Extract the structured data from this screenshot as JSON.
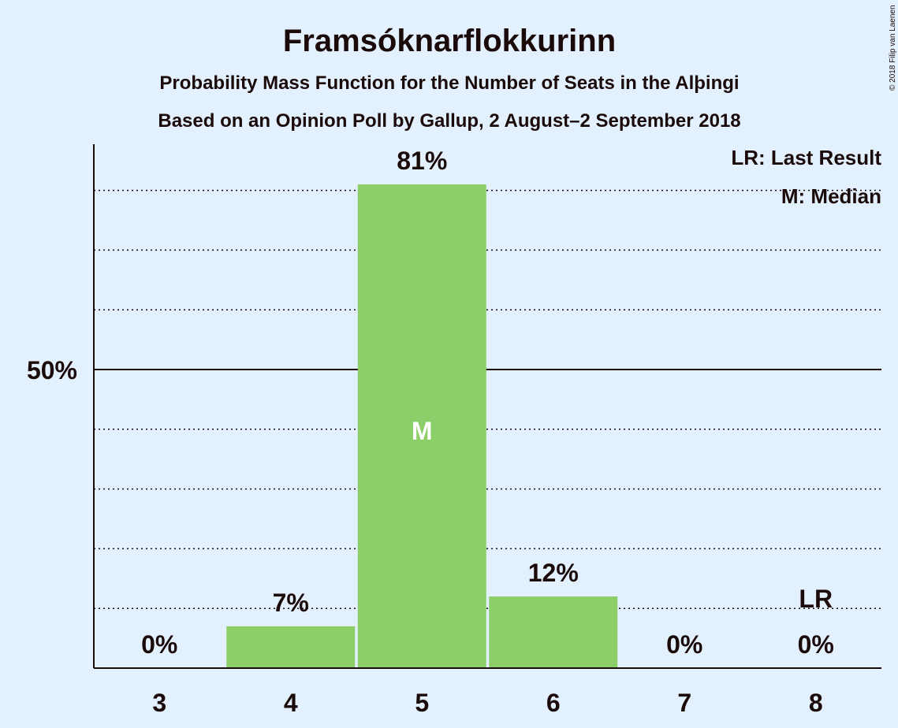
{
  "chart_data": {
    "type": "bar",
    "title": "Framsóknarflokkurinn",
    "subtitle_1": "Probability Mass Function for the Number of Seats in the Alþingi",
    "subtitle_2": "Based on an Opinion Poll by Gallup, 2 August–2 September 2018",
    "categories": [
      "3",
      "4",
      "5",
      "6",
      "7",
      "8"
    ],
    "values": [
      0,
      7,
      81,
      12,
      0,
      0
    ],
    "value_labels": [
      "0%",
      "7%",
      "81%",
      "12%",
      "0%",
      "0%"
    ],
    "ylim": [
      0,
      88
    ],
    "yticks": [
      50
    ],
    "ytick_labels": [
      "50%"
    ],
    "median_category": "5",
    "median_marker": "M",
    "last_result_category": "8",
    "last_result_marker": "LR",
    "legend": [
      "LR: Last Result",
      "M: Median"
    ],
    "legend_position": "top-right",
    "grid": "dotted",
    "bar_color": "#8ccf69",
    "background_color": "#e3f1fe",
    "text_color": "#1b0a0a",
    "copyright": "© 2018 Filip van Laenen"
  }
}
